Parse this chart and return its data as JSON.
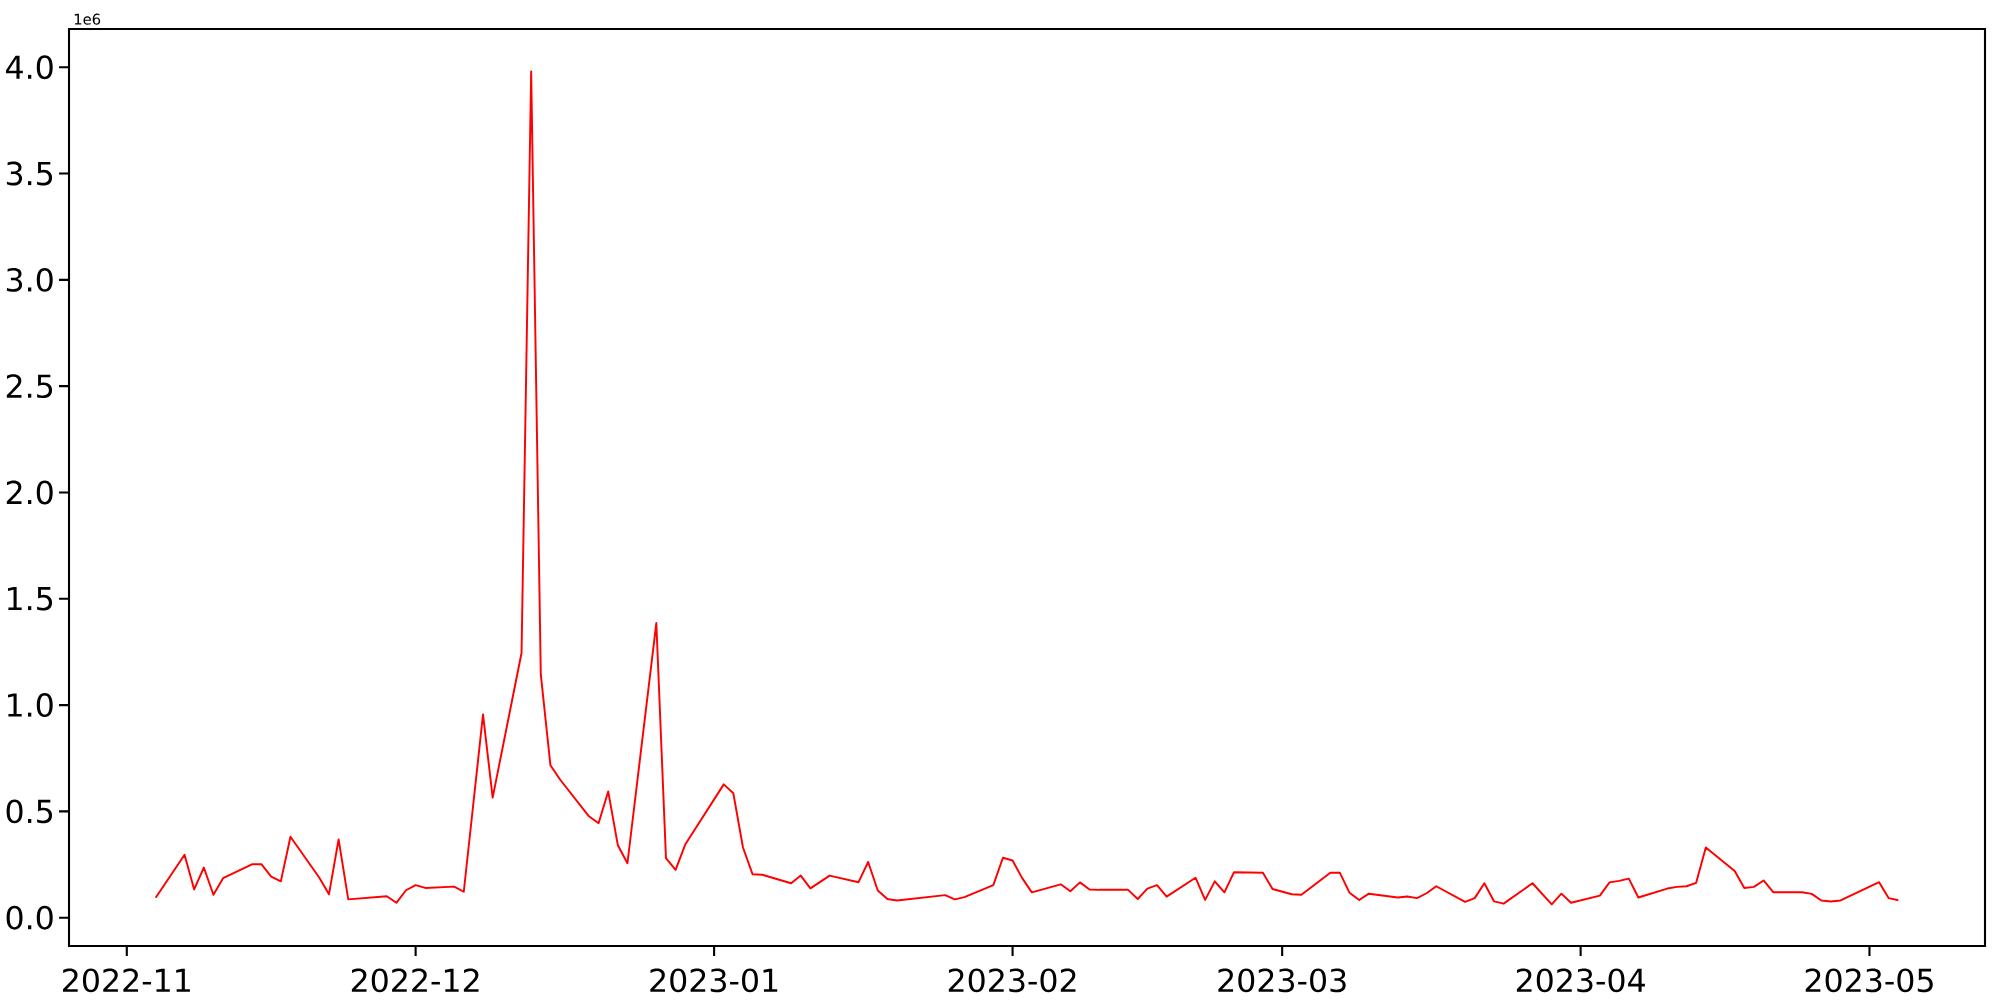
{
  "chart_data": {
    "type": "line",
    "x": [
      "2022-11-04",
      "2022-11-07",
      "2022-11-08",
      "2022-11-09",
      "2022-11-10",
      "2022-11-11",
      "2022-11-14",
      "2022-11-15",
      "2022-11-16",
      "2022-11-17",
      "2022-11-18",
      "2022-11-21",
      "2022-11-22",
      "2022-11-23",
      "2022-11-24",
      "2022-11-28",
      "2022-11-29",
      "2022-11-30",
      "2022-12-01",
      "2022-12-02",
      "2022-12-05",
      "2022-12-06",
      "2022-12-08",
      "2022-12-09",
      "2022-12-12",
      "2022-12-13",
      "2022-12-14",
      "2022-12-15",
      "2022-12-16",
      "2022-12-19",
      "2022-12-20",
      "2022-12-21",
      "2022-12-22",
      "2022-12-23",
      "2022-12-26",
      "2022-12-27",
      "2022-12-28",
      "2022-12-29",
      "2023-01-02",
      "2023-01-03",
      "2023-01-04",
      "2023-01-05",
      "2023-01-06",
      "2023-01-09",
      "2023-01-10",
      "2023-01-11",
      "2023-01-13",
      "2023-01-16",
      "2023-01-17",
      "2023-01-18",
      "2023-01-19",
      "2023-01-20",
      "2023-01-25",
      "2023-01-26",
      "2023-01-27",
      "2023-01-30",
      "2023-01-31",
      "2023-02-01",
      "2023-02-02",
      "2023-02-03",
      "2023-02-06",
      "2023-02-07",
      "2023-02-08",
      "2023-02-09",
      "2023-02-10",
      "2023-02-13",
      "2023-02-14",
      "2023-02-15",
      "2023-02-16",
      "2023-02-17",
      "2023-02-20",
      "2023-02-21",
      "2023-02-22",
      "2023-02-23",
      "2023-02-24",
      "2023-02-27",
      "2023-02-28",
      "2023-03-02",
      "2023-03-03",
      "2023-03-06",
      "2023-03-07",
      "2023-03-08",
      "2023-03-09",
      "2023-03-10",
      "2023-03-13",
      "2023-03-14",
      "2023-03-15",
      "2023-03-16",
      "2023-03-17",
      "2023-03-20",
      "2023-03-21",
      "2023-03-22",
      "2023-03-23",
      "2023-03-24",
      "2023-03-27",
      "2023-03-29",
      "2023-03-30",
      "2023-03-31",
      "2023-04-03",
      "2023-04-04",
      "2023-04-05",
      "2023-04-06",
      "2023-04-07",
      "2023-04-10",
      "2023-04-11",
      "2023-04-12",
      "2023-04-13",
      "2023-04-14",
      "2023-04-17",
      "2023-04-18",
      "2023-04-19",
      "2023-04-20",
      "2023-04-21",
      "2023-04-24",
      "2023-04-25",
      "2023-04-26",
      "2023-04-27",
      "2023-04-28",
      "2023-05-02",
      "2023-05-03",
      "2023-05-04"
    ],
    "series": [
      {
        "color": "#ff0000",
        "values": [
          0.094,
          0.296,
          0.133,
          0.236,
          0.108,
          0.186,
          0.251,
          0.251,
          0.193,
          0.171,
          0.381,
          0.188,
          0.11,
          0.368,
          0.086,
          0.101,
          0.07,
          0.129,
          0.153,
          0.14,
          0.146,
          0.122,
          0.956,
          0.565,
          1.245,
          3.98,
          1.144,
          0.717,
          0.65,
          0.477,
          0.444,
          0.594,
          0.341,
          0.256,
          1.386,
          0.28,
          0.225,
          0.344,
          0.627,
          0.585,
          0.33,
          0.204,
          0.202,
          0.162,
          0.198,
          0.138,
          0.198,
          0.167,
          0.262,
          0.128,
          0.088,
          0.081,
          0.106,
          0.086,
          0.097,
          0.153,
          0.282,
          0.269,
          0.186,
          0.119,
          0.157,
          0.124,
          0.166,
          0.133,
          0.131,
          0.131,
          0.088,
          0.137,
          0.153,
          0.099,
          0.188,
          0.084,
          0.171,
          0.119,
          0.214,
          0.211,
          0.135,
          0.11,
          0.108,
          0.211,
          0.211,
          0.117,
          0.083,
          0.113,
          0.095,
          0.1,
          0.092,
          0.115,
          0.148,
          0.074,
          0.092,
          0.162,
          0.077,
          0.066,
          0.162,
          0.063,
          0.113,
          0.07,
          0.104,
          0.166,
          0.173,
          0.184,
          0.095,
          0.137,
          0.145,
          0.148,
          0.164,
          0.33,
          0.22,
          0.14,
          0.145,
          0.175,
          0.12,
          0.12,
          0.112,
          0.081,
          0.076,
          0.081,
          0.167,
          0.092,
          0.082
        ]
      }
    ],
    "xlim": [
      "2022-10-26",
      "2023-05-13"
    ],
    "xticks": [
      "2022-11",
      "2022-12",
      "2023-01",
      "2023-02",
      "2023-03",
      "2023-04",
      "2023-05"
    ],
    "ylim": [
      -0.133,
      4.18
    ],
    "yticks": [
      {
        "value": 0,
        "label": "0.0"
      },
      0.5,
      {
        "value": 1,
        "label": "1.0"
      },
      1.5,
      {
        "value": 2,
        "label": "2.0"
      },
      2.5,
      {
        "value": 3,
        "label": "3.0"
      },
      3.5,
      {
        "value": 4,
        "label": "4.0"
      }
    ],
    "annotations": [
      "1e6"
    ]
  }
}
